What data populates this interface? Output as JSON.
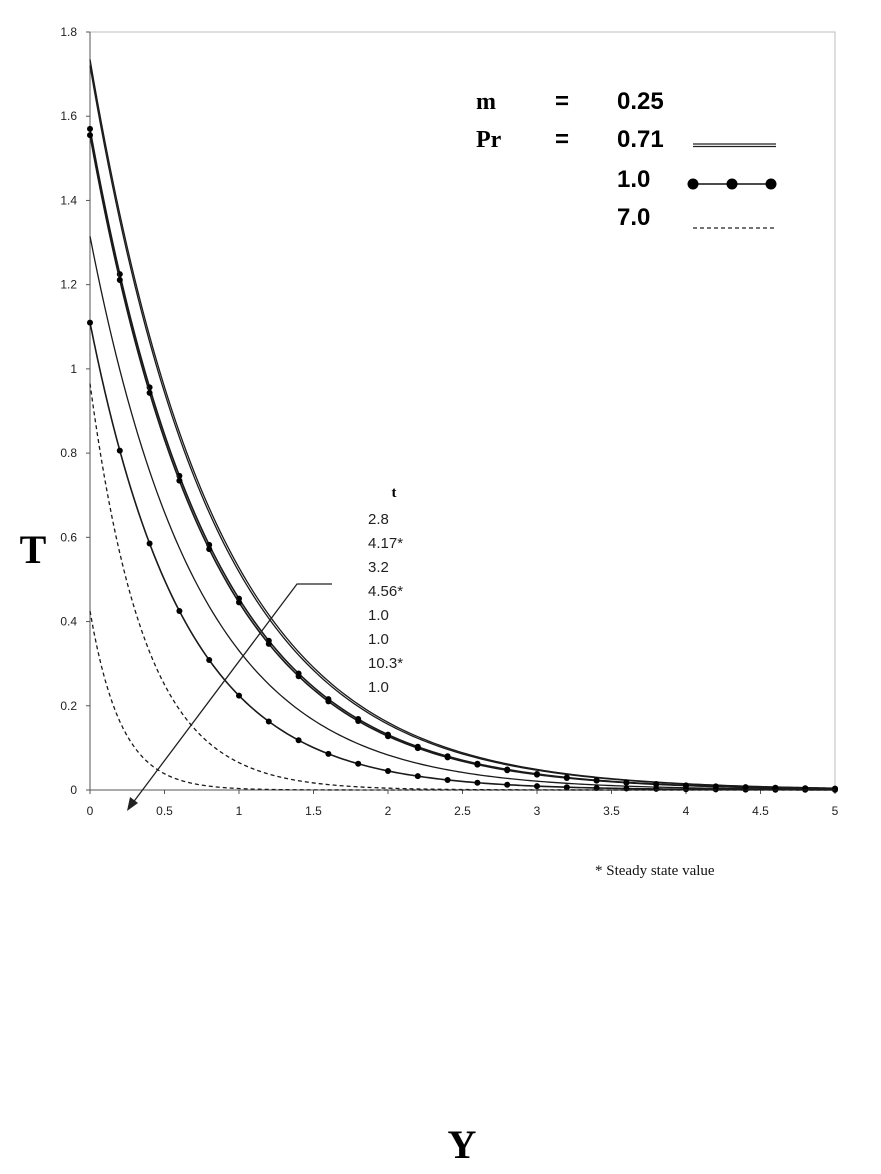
{
  "chart_data": {
    "type": "line",
    "xlabel": "Y",
    "ylabel": "T",
    "xlim": [
      0,
      5
    ],
    "ylim": [
      0,
      1.8
    ],
    "x_ticks": [
      "0",
      "0.5",
      "1",
      "1.5",
      "2",
      "2.5",
      "3",
      "3.5",
      "4",
      "4.5",
      "5"
    ],
    "y_ticks": [
      "0",
      "0.2",
      "0.4",
      "0.6",
      "0.8",
      "1",
      "1.2",
      "1.4",
      "1.6",
      "1.8"
    ],
    "grid": false,
    "legend": {
      "placement": "top-right",
      "m_symbol": "m",
      "m_equals": "=",
      "m_value": "0.25",
      "pr_symbol": "Pr",
      "pr_equals": "=",
      "entries": [
        {
          "label": "0.71",
          "style": "solid"
        },
        {
          "label": "1.0",
          "style": "solid-dots"
        },
        {
          "label": "7.0",
          "style": "dashed"
        }
      ]
    },
    "t_header": "t",
    "t_values": [
      "2.8",
      "4.17*",
      "3.2",
      "4.56*",
      "1.0",
      "1.0",
      "10.3*",
      "1.0"
    ],
    "annotation": "* Steady state value",
    "series": [
      {
        "pr": "0.71",
        "style": "solid",
        "t0": 1.72,
        "k": 1.2
      },
      {
        "pr": "0.71",
        "style": "solid",
        "t0": 1.735,
        "k": 1.19
      },
      {
        "pr": "1.0",
        "style": "solid-dots",
        "t0": 1.57,
        "k": 1.24
      },
      {
        "pr": "1.0",
        "style": "solid-dots",
        "t0": 1.555,
        "k": 1.25
      },
      {
        "pr": "0.71",
        "style": "solid",
        "t0": 1.315,
        "k": 1.38
      },
      {
        "pr": "1.0",
        "style": "solid-dots",
        "t0": 1.11,
        "k": 1.6
      },
      {
        "pr": "7.0",
        "style": "dashed",
        "t0": 0.965,
        "k": 2.7
      },
      {
        "pr": "7.0",
        "style": "dashed",
        "t0": 0.425,
        "k": 4.8
      }
    ]
  }
}
